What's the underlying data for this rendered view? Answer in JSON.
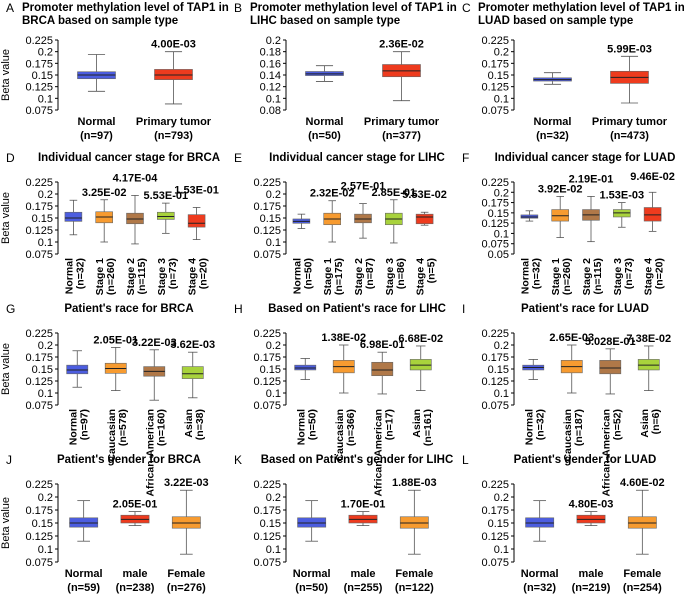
{
  "colors": {
    "normal": "#4c5de0",
    "tumor": "#ee3b1e",
    "orange": "#f79b30",
    "brown": "#b07848",
    "lime": "#a8d23c"
  },
  "chart_data": [
    {
      "type": "boxplot",
      "letter": "A",
      "title": [
        "Promoter methylation level of TAP1 in",
        "BRCA based on sample type"
      ],
      "ylabel": "Beta value",
      "ylim": [
        0.075,
        0.225
      ],
      "yticks": [
        0.075,
        0.1,
        0.125,
        0.15,
        0.175,
        0.2,
        0.225
      ],
      "ytick_labels": [
        "0.075",
        "0.1",
        "0.125",
        "0.15",
        "0.175",
        "0.2",
        "0.225"
      ],
      "categories": [
        "Normal",
        "Primary tumor"
      ],
      "n_labels": [
        "(n=97)",
        "(n=793)"
      ],
      "p_values": [
        "",
        "4.00E-03"
      ],
      "box_colors": [
        "normal",
        "tumor"
      ],
      "boxes": [
        {
          "min": 0.115,
          "q1": 0.142,
          "median": 0.15,
          "q3": 0.157,
          "max": 0.194
        },
        {
          "min": 0.088,
          "q1": 0.14,
          "median": 0.15,
          "q3": 0.162,
          "max": 0.2
        }
      ]
    },
    {
      "type": "boxplot",
      "letter": "B",
      "title": [
        "Promoter methylation level of TAP1 in",
        "LIHC based on sample type"
      ],
      "ylabel": "",
      "ylim": [
        0.08,
        0.2
      ],
      "yticks": [
        0.08,
        0.1,
        0.12,
        0.14,
        0.16,
        0.18,
        0.2
      ],
      "ytick_labels": [
        "0.08",
        "0.1",
        "0.12",
        "0.14",
        "0.16",
        "0.18",
        "0.2"
      ],
      "categories": [
        "Normal",
        "Primary tumor"
      ],
      "n_labels": [
        "(n=50)",
        "(n=377)"
      ],
      "p_values": [
        "",
        "2.36E-02"
      ],
      "box_colors": [
        "normal",
        "tumor"
      ],
      "boxes": [
        {
          "min": 0.129,
          "q1": 0.139,
          "median": 0.142,
          "q3": 0.146,
          "max": 0.156
        },
        {
          "min": 0.096,
          "q1": 0.137,
          "median": 0.147,
          "q3": 0.158,
          "max": 0.18
        }
      ]
    },
    {
      "type": "boxplot",
      "letter": "C",
      "title": [
        "Promoter methylation level of TAP1 in",
        "LUAD based on sample type"
      ],
      "ylabel": "",
      "ylim": [
        0.075,
        0.225
      ],
      "yticks": [
        0.075,
        0.1,
        0.125,
        0.15,
        0.175,
        0.2,
        0.225
      ],
      "ytick_labels": [
        "0.075",
        "0.1",
        "0.125",
        "0.15",
        "0.175",
        "0.2",
        "0.225"
      ],
      "categories": [
        "Normal",
        "Primary tumor"
      ],
      "n_labels": [
        "(n=32)",
        "(n=473)"
      ],
      "p_values": [
        "",
        "5.99E-03"
      ],
      "box_colors": [
        "normal",
        "tumor"
      ],
      "boxes": [
        {
          "min": 0.13,
          "q1": 0.137,
          "median": 0.14,
          "q3": 0.144,
          "max": 0.155
        },
        {
          "min": 0.09,
          "q1": 0.132,
          "median": 0.145,
          "q3": 0.158,
          "max": 0.19
        }
      ]
    },
    {
      "type": "boxplot",
      "letter": "D",
      "title": [
        "Individual cancer stage for BRCA"
      ],
      "ylabel": "Beta value",
      "ylim": [
        0.075,
        0.225
      ],
      "yticks": [
        0.075,
        0.1,
        0.125,
        0.15,
        0.175,
        0.2,
        0.225
      ],
      "ytick_labels": [
        "0.075",
        "0.1",
        "0.125",
        "0.15",
        "0.175",
        "0.2",
        "0.225"
      ],
      "categories": [
        "Normal",
        "Stage 1",
        "Stage 2",
        "Stage 3",
        "Stage 4"
      ],
      "n_labels": [
        "(n=32)",
        "(n=260)",
        "(n=115)",
        "(n=73)",
        "(n=20)"
      ],
      "p_values": [
        "",
        "3.25E-02",
        "4.17E-04",
        "5.53E-01",
        "1.53E-01"
      ],
      "box_colors": [
        "normal",
        "orange",
        "brown",
        "lime",
        "tumor"
      ],
      "boxes": [
        {
          "min": 0.115,
          "q1": 0.143,
          "median": 0.15,
          "q3": 0.162,
          "max": 0.187
        },
        {
          "min": 0.1,
          "q1": 0.14,
          "median": 0.152,
          "q3": 0.163,
          "max": 0.188
        },
        {
          "min": 0.096,
          "q1": 0.138,
          "median": 0.148,
          "q3": 0.16,
          "max": 0.197
        },
        {
          "min": 0.118,
          "q1": 0.147,
          "median": 0.153,
          "q3": 0.162,
          "max": 0.181
        },
        {
          "min": 0.105,
          "q1": 0.131,
          "median": 0.139,
          "q3": 0.157,
          "max": 0.172
        }
      ]
    },
    {
      "type": "boxplot",
      "letter": "E",
      "title": [
        "Individual cancer stage for LIHC"
      ],
      "ylabel": "",
      "ylim": [
        0.075,
        0.225
      ],
      "yticks": [
        0.075,
        0.1,
        0.125,
        0.15,
        0.175,
        0.2,
        0.225
      ],
      "ytick_labels": [
        "0.075",
        "0.1",
        "0.125",
        "0.15",
        "0.175",
        "0.2",
        "0.225"
      ],
      "categories": [
        "Normal",
        "Stage 1",
        "Stage 2",
        "Stage 3",
        "Stage 4"
      ],
      "n_labels": [
        "(n=50)",
        "(n=175)",
        "(n=87)",
        "(n=86)",
        "(n=5)"
      ],
      "p_values": [
        "",
        "2.32E-02",
        "2.57E-01",
        "2.85E-01",
        "5.53E-02"
      ],
      "box_colors": [
        "normal",
        "orange",
        "brown",
        "lime",
        "tumor"
      ],
      "boxes": [
        {
          "min": 0.128,
          "q1": 0.139,
          "median": 0.143,
          "q3": 0.148,
          "max": 0.158
        },
        {
          "min": 0.1,
          "q1": 0.136,
          "median": 0.148,
          "q3": 0.16,
          "max": 0.186
        },
        {
          "min": 0.108,
          "q1": 0.14,
          "median": 0.148,
          "q3": 0.158,
          "max": 0.18
        },
        {
          "min": 0.098,
          "q1": 0.136,
          "median": 0.148,
          "q3": 0.16,
          "max": 0.188
        },
        {
          "min": 0.135,
          "q1": 0.138,
          "median": 0.152,
          "q3": 0.158,
          "max": 0.162
        }
      ]
    },
    {
      "type": "boxplot",
      "letter": "F",
      "title": [
        "Individual cancer stage for LUAD"
      ],
      "ylabel": "",
      "ylim": [
        0.05,
        0.225
      ],
      "yticks": [
        0.05,
        0.075,
        0.1,
        0.125,
        0.15,
        0.175,
        0.2,
        0.225
      ],
      "ytick_labels": [
        "0.05",
        "0.075",
        "0.1",
        "0.125",
        "0.15",
        "0.175",
        "0.2",
        "0.225"
      ],
      "categories": [
        "Normal",
        "Stage 1",
        "Stage 2",
        "Stage 3",
        "Stage 4"
      ],
      "n_labels": [
        "(n=32)",
        "(n=260)",
        "(n=115)",
        "(n=73)",
        "(n=20)"
      ],
      "p_values": [
        "",
        "3.92E-02",
        "2.19E-01",
        "1.53E-03",
        "9.46E-02"
      ],
      "box_colors": [
        "normal",
        "orange",
        "brown",
        "lime",
        "tumor"
      ],
      "boxes": [
        {
          "min": 0.13,
          "q1": 0.137,
          "median": 0.14,
          "q3": 0.145,
          "max": 0.155
        },
        {
          "min": 0.09,
          "q1": 0.13,
          "median": 0.143,
          "q3": 0.158,
          "max": 0.19
        },
        {
          "min": 0.08,
          "q1": 0.132,
          "median": 0.145,
          "q3": 0.158,
          "max": 0.19
        },
        {
          "min": 0.115,
          "q1": 0.14,
          "median": 0.15,
          "q3": 0.158,
          "max": 0.175
        },
        {
          "min": 0.105,
          "q1": 0.13,
          "median": 0.145,
          "q3": 0.163,
          "max": 0.2
        }
      ]
    },
    {
      "type": "boxplot",
      "letter": "G",
      "title": [
        "Patient's race for BRCA"
      ],
      "ylabel": "Beta value",
      "ylim": [
        0.075,
        0.225
      ],
      "yticks": [
        0.075,
        0.1,
        0.125,
        0.15,
        0.175,
        0.2,
        0.225
      ],
      "ytick_labels": [
        "0.075",
        "0.1",
        "0.125",
        "0.15",
        "0.175",
        "0.2",
        "0.225"
      ],
      "categories": [
        "Normal",
        "Caucasian",
        "African-American",
        "Asian"
      ],
      "n_labels": [
        "(n=97)",
        "(n=578)",
        "(n=160)",
        "(n=38)"
      ],
      "p_values": [
        "",
        "2.05E-01",
        "3.22E-03",
        "3.62E-03"
      ],
      "box_colors": [
        "normal",
        "orange",
        "brown",
        "lime"
      ],
      "boxes": [
        {
          "min": 0.112,
          "q1": 0.14,
          "median": 0.148,
          "q3": 0.158,
          "max": 0.188
        },
        {
          "min": 0.105,
          "q1": 0.141,
          "median": 0.151,
          "q3": 0.162,
          "max": 0.195
        },
        {
          "min": 0.085,
          "q1": 0.135,
          "median": 0.145,
          "q3": 0.155,
          "max": 0.19
        },
        {
          "min": 0.09,
          "q1": 0.13,
          "median": 0.14,
          "q3": 0.155,
          "max": 0.185
        }
      ]
    },
    {
      "type": "boxplot",
      "letter": "H",
      "title": [
        "Based on Patient's race for LIHC"
      ],
      "ylabel": "",
      "ylim": [
        0.075,
        0.225
      ],
      "yticks": [
        0.075,
        0.1,
        0.125,
        0.15,
        0.175,
        0.2,
        0.225
      ],
      "ytick_labels": [
        "0.075",
        "0.1",
        "0.125",
        "0.15",
        "0.175",
        "0.2",
        "0.225"
      ],
      "categories": [
        "Normal",
        "Caucasian",
        "African-American",
        "Asian"
      ],
      "n_labels": [
        "(n=50)",
        "(n=366)",
        "(n=17)",
        "(n=161)"
      ],
      "p_values": [
        "",
        "1.38E-02",
        "6.98E-01",
        "6.68E-02"
      ],
      "box_colors": [
        "normal",
        "orange",
        "brown",
        "lime"
      ],
      "boxes": [
        {
          "min": 0.128,
          "q1": 0.148,
          "median": 0.152,
          "q3": 0.158,
          "max": 0.172
        },
        {
          "min": 0.1,
          "q1": 0.142,
          "median": 0.155,
          "q3": 0.168,
          "max": 0.2
        },
        {
          "min": 0.098,
          "q1": 0.136,
          "median": 0.148,
          "q3": 0.164,
          "max": 0.185
        },
        {
          "min": 0.105,
          "q1": 0.148,
          "median": 0.158,
          "q3": 0.17,
          "max": 0.198
        }
      ]
    },
    {
      "type": "boxplot",
      "letter": "I",
      "title": [
        "Patient's race for LUAD"
      ],
      "ylabel": "",
      "ylim": [
        0.075,
        0.225
      ],
      "yticks": [
        0.075,
        0.1,
        0.125,
        0.15,
        0.175,
        0.2,
        0.225
      ],
      "ytick_labels": [
        "0.075",
        "0.1",
        "0.125",
        "0.15",
        "0.175",
        "0.2",
        "0.225"
      ],
      "categories": [
        "Normal",
        "Caucasian",
        "African-American",
        "Asian"
      ],
      "n_labels": [
        "(n=32)",
        "(n=187)",
        "(n=52)",
        "(n=6)"
      ],
      "p_values": [
        "",
        "2.65E-03",
        "5.028E-01",
        "7.38E-02"
      ],
      "box_colors": [
        "normal",
        "orange",
        "brown",
        "lime"
      ],
      "boxes": [
        {
          "min": 0.128,
          "q1": 0.148,
          "median": 0.153,
          "q3": 0.158,
          "max": 0.17
        },
        {
          "min": 0.1,
          "q1": 0.142,
          "median": 0.155,
          "q3": 0.168,
          "max": 0.2
        },
        {
          "min": 0.098,
          "q1": 0.14,
          "median": 0.152,
          "q3": 0.168,
          "max": 0.192
        },
        {
          "min": 0.105,
          "q1": 0.148,
          "median": 0.158,
          "q3": 0.17,
          "max": 0.198
        }
      ]
    },
    {
      "type": "boxplot",
      "letter": "J",
      "title": [
        "Patient's gender for BRCA"
      ],
      "ylabel": "Beta value",
      "ylim": [
        0.075,
        0.225
      ],
      "yticks": [
        0.075,
        0.1,
        0.125,
        0.15,
        0.175,
        0.2,
        0.225
      ],
      "ytick_labels": [
        "0.075",
        "0.1",
        "0.125",
        "0.15",
        "0.175",
        "0.2",
        "0.225"
      ],
      "categories": [
        "Normal",
        "male",
        "Female"
      ],
      "n_labels": [
        "(n=59)",
        "(n=238)",
        "(n=276)"
      ],
      "p_values": [
        "",
        "2.05E-01",
        "3.22E-03"
      ],
      "box_colors": [
        "normal",
        "tumor",
        "orange"
      ],
      "boxes": [
        {
          "min": 0.115,
          "q1": 0.142,
          "median": 0.15,
          "q3": 0.16,
          "max": 0.193
        },
        {
          "min": 0.145,
          "q1": 0.15,
          "median": 0.157,
          "q3": 0.165,
          "max": 0.172
        },
        {
          "min": 0.09,
          "q1": 0.14,
          "median": 0.15,
          "q3": 0.162,
          "max": 0.213
        }
      ]
    },
    {
      "type": "boxplot",
      "letter": "K",
      "title": [
        "Based on Patient's gender for LIHC"
      ],
      "ylabel": "",
      "ylim": [
        0.075,
        0.225
      ],
      "yticks": [
        0.075,
        0.1,
        0.125,
        0.15,
        0.175,
        0.2,
        0.225
      ],
      "ytick_labels": [
        "0.075",
        "0.1",
        "0.125",
        "0.15",
        "0.175",
        "0.2",
        "0.225"
      ],
      "categories": [
        "Normal",
        "male",
        "Female"
      ],
      "n_labels": [
        "(n=50)",
        "(n=255)",
        "(n=122)"
      ],
      "p_values": [
        "",
        "1.70E-01",
        "1.88E-03"
      ],
      "box_colors": [
        "normal",
        "tumor",
        "orange"
      ],
      "boxes": [
        {
          "min": 0.115,
          "q1": 0.142,
          "median": 0.15,
          "q3": 0.16,
          "max": 0.193
        },
        {
          "min": 0.145,
          "q1": 0.15,
          "median": 0.157,
          "q3": 0.165,
          "max": 0.172
        },
        {
          "min": 0.09,
          "q1": 0.14,
          "median": 0.15,
          "q3": 0.162,
          "max": 0.213
        }
      ]
    },
    {
      "type": "boxplot",
      "letter": "L",
      "title": [
        "Patient's gender for LUAD"
      ],
      "ylabel": "",
      "ylim": [
        0.075,
        0.225
      ],
      "yticks": [
        0.075,
        0.1,
        0.125,
        0.15,
        0.175,
        0.2,
        0.225
      ],
      "ytick_labels": [
        "0.075",
        "0.1",
        "0.125",
        "0.15",
        "0.175",
        "0.2",
        "0.225"
      ],
      "categories": [
        "Normal",
        "male",
        "Female"
      ],
      "n_labels": [
        "(n=32)",
        "(n=219)",
        "(n=254)"
      ],
      "p_values": [
        "",
        "4.80E-03",
        "4.60E-02"
      ],
      "box_colors": [
        "normal",
        "tumor",
        "orange"
      ],
      "boxes": [
        {
          "min": 0.115,
          "q1": 0.142,
          "median": 0.15,
          "q3": 0.16,
          "max": 0.193
        },
        {
          "min": 0.145,
          "q1": 0.15,
          "median": 0.157,
          "q3": 0.165,
          "max": 0.172
        },
        {
          "min": 0.09,
          "q1": 0.14,
          "median": 0.15,
          "q3": 0.162,
          "max": 0.213
        }
      ]
    }
  ]
}
